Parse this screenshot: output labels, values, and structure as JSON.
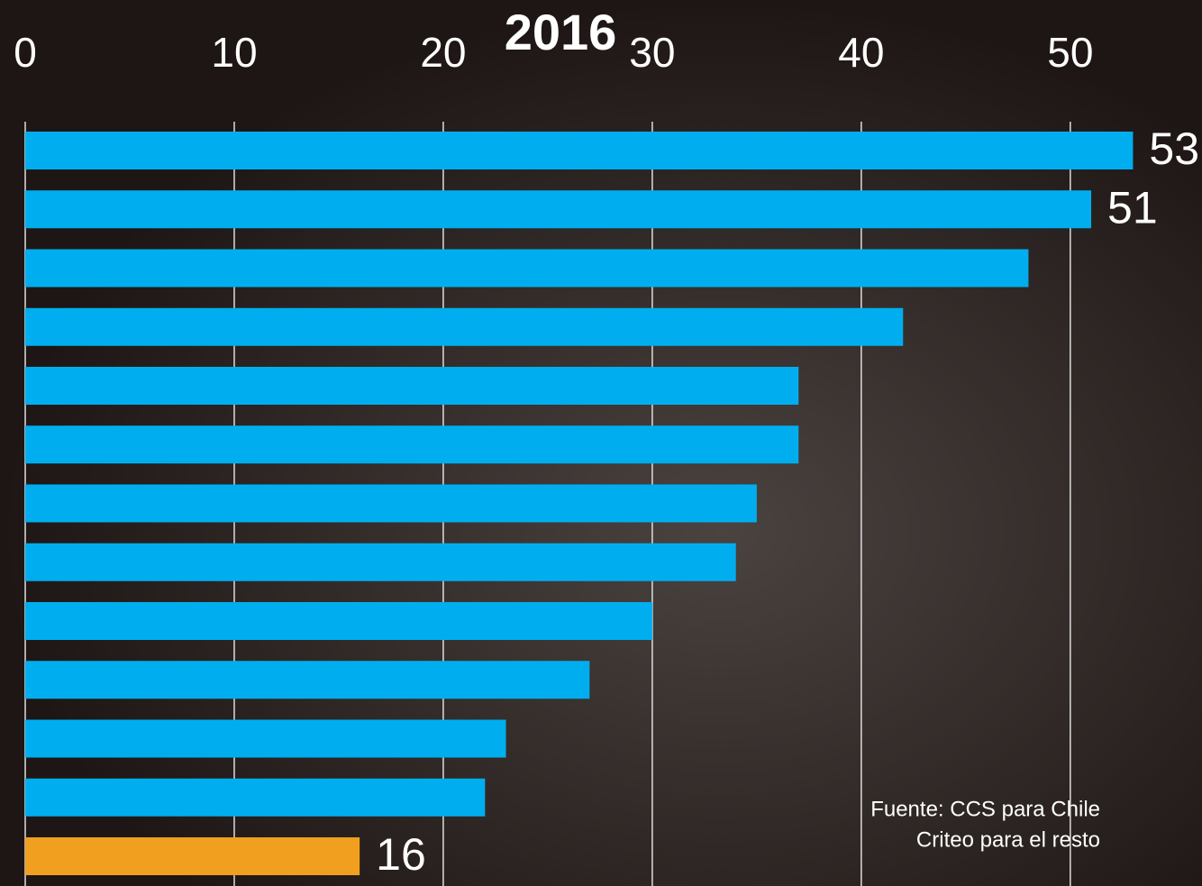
{
  "chart_data": {
    "type": "hbar",
    "title": "2016",
    "categories": [
      null,
      null,
      null,
      null,
      null,
      null,
      null,
      null,
      null,
      null,
      null,
      null,
      null
    ],
    "values": [
      53,
      51,
      48,
      42,
      37,
      37,
      35,
      34,
      30,
      27,
      23,
      22,
      16
    ],
    "data_labels": [
      53,
      51,
      null,
      null,
      null,
      null,
      null,
      null,
      null,
      null,
      null,
      null,
      16
    ],
    "colors": [
      "#00aeef",
      "#00aeef",
      "#00aeef",
      "#00aeef",
      "#00aeef",
      "#00aeef",
      "#00aeef",
      "#00aeef",
      "#00aeef",
      "#00aeef",
      "#00aeef",
      "#00aeef",
      "#f0a01e"
    ],
    "xlim": [
      0,
      56
    ],
    "xticks": [
      0,
      10,
      20,
      30,
      40,
      50
    ],
    "grid": true,
    "source": [
      "Fuente: CCS para Chile",
      "Criteo para el resto"
    ]
  }
}
